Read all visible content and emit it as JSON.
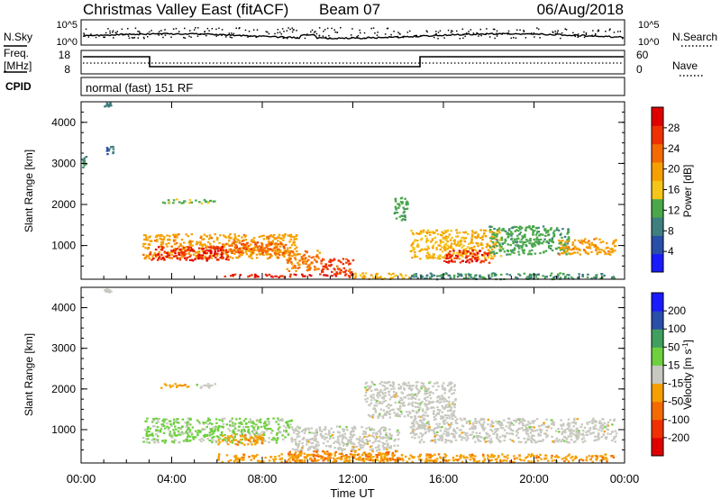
{
  "header": {
    "station": "Christmas Valley East (fitACF)",
    "beam": "Beam 07",
    "date": "06/Aug/2018"
  },
  "noise_panel": {
    "left_label": "N.Sky",
    "right_label": "N.Search",
    "left_ticks": [
      "10^5",
      "10^0"
    ],
    "right_ticks": [
      "10^5",
      "10^0"
    ]
  },
  "freq_panel": {
    "left_label_line1": "Freq.",
    "left_label_line2": "[MHz]",
    "right_label": "Nave",
    "left_ticks": [
      "18",
      "8"
    ],
    "right_ticks": [
      "60",
      "0"
    ]
  },
  "cpid": {
    "label": "CPID",
    "text": "normal (fast) 151 RF"
  },
  "colors": {
    "power_scale": [
      "#1a1aff",
      "#2a4fa8",
      "#3f7f7f",
      "#4aa84a",
      "#f5c518",
      "#f5a000",
      "#f56a00",
      "#f03000",
      "#e00000"
    ],
    "velocity_scale": [
      "#e00000",
      "#f03000",
      "#f56a00",
      "#f5a000",
      "#c8c8c0",
      "#6ed03e",
      "#3f9f5f",
      "#2a4fa8",
      "#1a1aff"
    ]
  },
  "chart_data": [
    {
      "type": "heatmap",
      "title": "",
      "xlabel": "",
      "ylabel": "Slant Range [km]",
      "xlim_hours": [
        0,
        24
      ],
      "ylim": [
        180,
        4500
      ],
      "y_ticks": [
        "4000",
        "3000",
        "2000",
        "1000"
      ],
      "y_tick_values": [
        4000,
        3000,
        2000,
        1000
      ],
      "colorbar": {
        "label": "Power [dB]",
        "ticks": [
          "28",
          "24",
          "20",
          "16",
          "12",
          "8",
          "4"
        ],
        "range": [
          0,
          32
        ]
      },
      "regions": [
        {
          "x": [
            1.0,
            1.3
          ],
          "y": [
            4400,
            4500
          ],
          "v": 8
        },
        {
          "x": [
            0.0,
            0.2
          ],
          "y": [
            2900,
            3200
          ],
          "v": 10
        },
        {
          "x": [
            1.1,
            1.4
          ],
          "y": [
            3250,
            3450
          ],
          "v": 8
        },
        {
          "x": [
            3.5,
            4.9
          ],
          "y": [
            2050,
            2150
          ],
          "v": 13
        },
        {
          "x": [
            5.0,
            5.9
          ],
          "y": [
            2050,
            2150
          ],
          "v": 13
        },
        {
          "x": [
            2.7,
            9.5
          ],
          "y": [
            700,
            1300
          ],
          "v": 20
        },
        {
          "x": [
            3.0,
            6.5
          ],
          "y": [
            650,
            1000
          ],
          "v": 28
        },
        {
          "x": [
            6.5,
            9.0
          ],
          "y": [
            800,
            1100
          ],
          "v": 24
        },
        {
          "x": [
            9.0,
            10.5
          ],
          "y": [
            400,
            900
          ],
          "v": 22
        },
        {
          "x": [
            10.5,
            12.0
          ],
          "y": [
            300,
            700
          ],
          "v": 26
        },
        {
          "x": [
            6.0,
            12.0
          ],
          "y": [
            250,
            320
          ],
          "v": 28
        },
        {
          "x": [
            12.0,
            14.5
          ],
          "y": [
            200,
            350
          ],
          "v": 18
        },
        {
          "x": [
            13.8,
            14.4
          ],
          "y": [
            1600,
            2200
          ],
          "v": 12
        },
        {
          "x": [
            14.5,
            18.5
          ],
          "y": [
            700,
            1400
          ],
          "v": 18
        },
        {
          "x": [
            16.0,
            18.0
          ],
          "y": [
            600,
            900
          ],
          "v": 28
        },
        {
          "x": [
            18.0,
            21.5
          ],
          "y": [
            800,
            1500
          ],
          "v": 12
        },
        {
          "x": [
            21.0,
            23.6
          ],
          "y": [
            800,
            1200
          ],
          "v": 20
        },
        {
          "x": [
            14.5,
            23.5
          ],
          "y": [
            200,
            350
          ],
          "v": 10
        }
      ]
    },
    {
      "type": "heatmap",
      "title": "",
      "xlabel": "Time UT",
      "ylabel": "Slant Range [km]",
      "xlim_hours": [
        0,
        24
      ],
      "ylim": [
        180,
        4500
      ],
      "x_ticks": [
        "00:00",
        "04:00",
        "08:00",
        "12:00",
        "16:00",
        "20:00",
        "00:00"
      ],
      "y_ticks": [
        "4000",
        "3000",
        "2000",
        "1000"
      ],
      "y_tick_values": [
        4000,
        3000,
        2000,
        1000
      ],
      "colorbar": {
        "label": "Velocity [m s",
        "label_sup": "-1",
        "label_end": "]",
        "ticks": [
          "200",
          "100",
          "50",
          "15",
          "-15",
          "-50",
          "-100",
          "-200"
        ],
        "range": [
          -250,
          250
        ]
      },
      "regions": [
        {
          "x": [
            1.0,
            1.3
          ],
          "y": [
            4400,
            4500
          ],
          "v": 0
        },
        {
          "x": [
            3.5,
            4.9
          ],
          "y": [
            2050,
            2150
          ],
          "v": -60
        },
        {
          "x": [
            5.0,
            5.9
          ],
          "y": [
            2050,
            2150
          ],
          "v": 0
        },
        {
          "x": [
            2.7,
            9.3
          ],
          "y": [
            700,
            1300
          ],
          "v": 40
        },
        {
          "x": [
            6.0,
            8.0
          ],
          "y": [
            650,
            900
          ],
          "v": -60
        },
        {
          "x": [
            9.3,
            14.0
          ],
          "y": [
            500,
            1100
          ],
          "v": 0
        },
        {
          "x": [
            12.5,
            16.5
          ],
          "y": [
            1300,
            2200
          ],
          "v": 0
        },
        {
          "x": [
            14.5,
            23.6
          ],
          "y": [
            700,
            1300
          ],
          "v": 0
        },
        {
          "x": [
            6.0,
            23.5
          ],
          "y": [
            220,
            420
          ],
          "v": -60
        },
        {
          "x": [
            9.0,
            14.0
          ],
          "y": [
            250,
            500
          ],
          "v": -80
        }
      ]
    }
  ]
}
